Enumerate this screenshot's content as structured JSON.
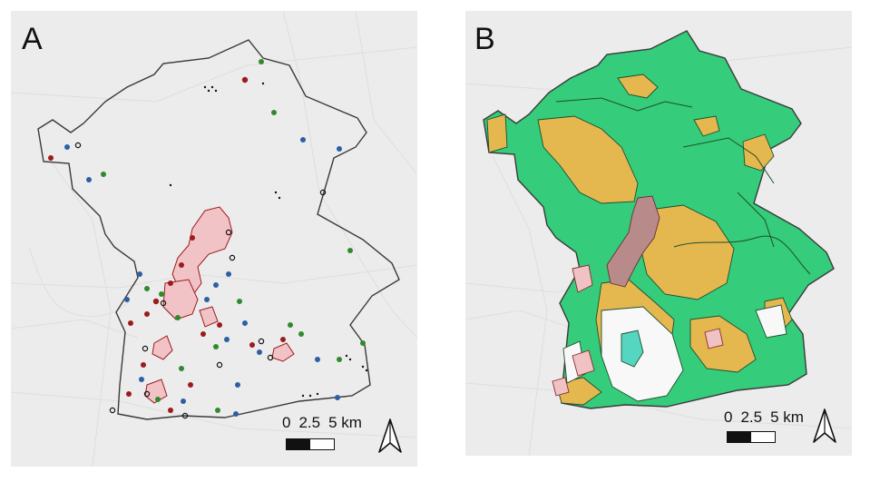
{
  "panels": [
    {
      "letter": "A",
      "scale_labels": [
        "0",
        "2.5",
        "5 km"
      ],
      "icons": [
        "north-arrow-icon"
      ],
      "legend": [],
      "colors": {
        "background": "#ececec",
        "boundary": "#3a3a3a",
        "polygon_fill": "#f2c3c6",
        "polygon_outline": "#9b1b1b",
        "points_red": "#9b1c1c",
        "points_green": "#2f8a2c",
        "points_blue": "#2e5fa3",
        "points_open": "#111111"
      }
    },
    {
      "letter": "B",
      "scale_labels": [
        "0",
        "2.5",
        "5 km"
      ],
      "icons": [
        "north-arrow-icon"
      ],
      "legend": [],
      "colors": {
        "background": "#ececec",
        "boundary": "#3a3a3a",
        "green_class": "#35cc7b",
        "yellow_class": "#e4b84f",
        "pink_class": "#f0c2c4",
        "teal_class": "#55d6c0",
        "white_class": "#f8f8f8",
        "hatched_class": "#b98a8a"
      }
    }
  ]
}
